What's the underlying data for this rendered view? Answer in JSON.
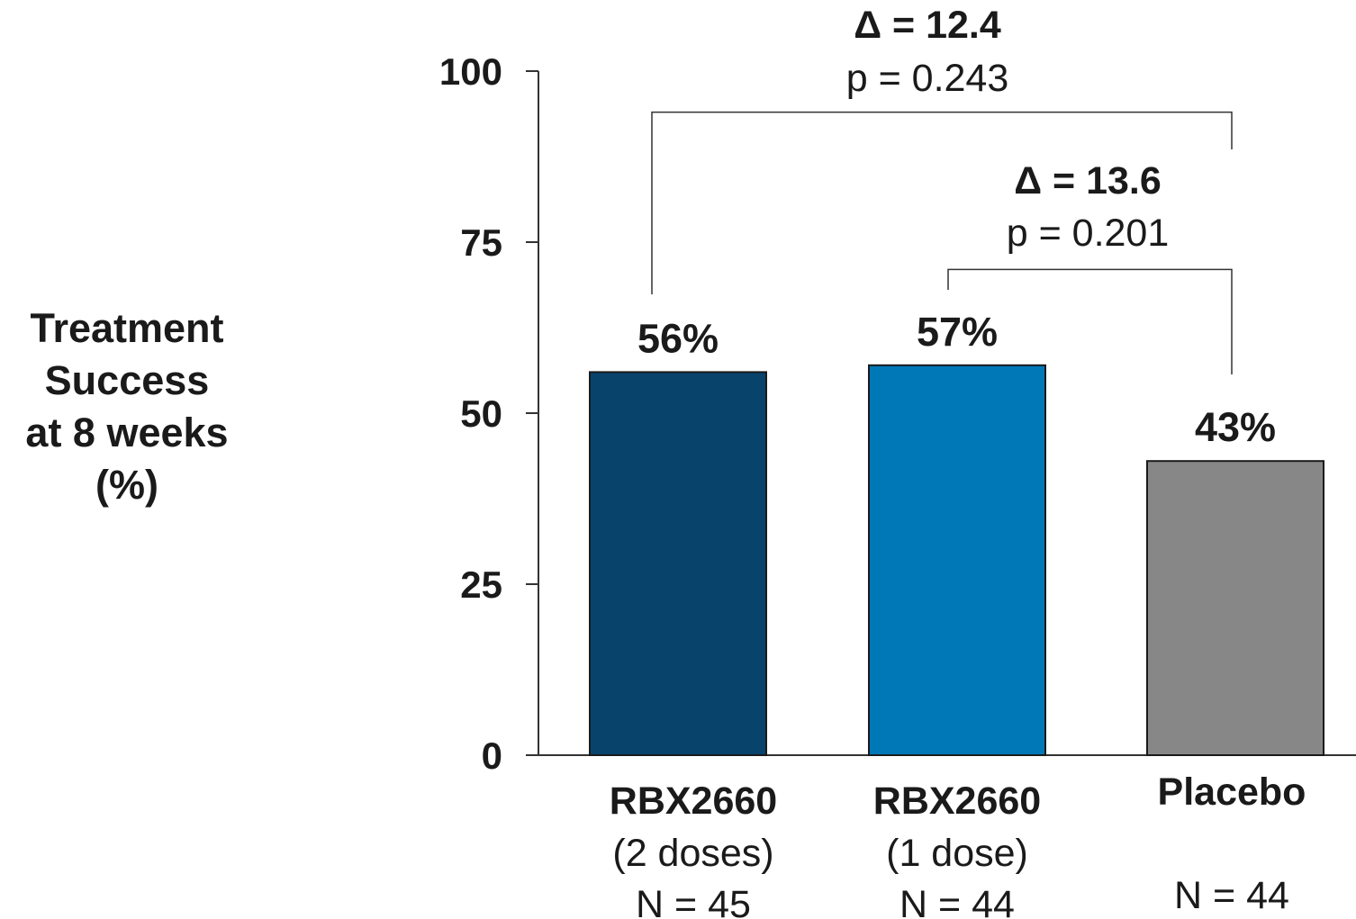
{
  "chart_data": {
    "type": "bar",
    "ylabel_lines": [
      "Treatment",
      "Success",
      "at 8 weeks",
      "(%)"
    ],
    "ylim": [
      0,
      100
    ],
    "yticks": [
      0,
      25,
      50,
      75,
      100
    ],
    "grid": false,
    "categories": [
      {
        "name": "RBX2660",
        "sub": "(2 doses)",
        "n": "N = 45"
      },
      {
        "name": "RBX2660",
        "sub": "(1 dose)",
        "n": "N = 44"
      },
      {
        "name": "Placebo",
        "sub": "",
        "n": "N = 44"
      }
    ],
    "values": [
      56,
      57,
      43
    ],
    "data_labels": [
      "56%",
      "57%",
      "43%"
    ],
    "colors": [
      "#08436b",
      "#0078b8",
      "#878787"
    ],
    "comparisons": [
      {
        "from": 0,
        "to": 2,
        "level": 94,
        "delta": "Δ = 12.4",
        "p": "p = 0.243"
      },
      {
        "from": 1,
        "to": 2,
        "level": 71,
        "delta": "Δ = 13.6",
        "p": "p = 0.201"
      }
    ]
  }
}
